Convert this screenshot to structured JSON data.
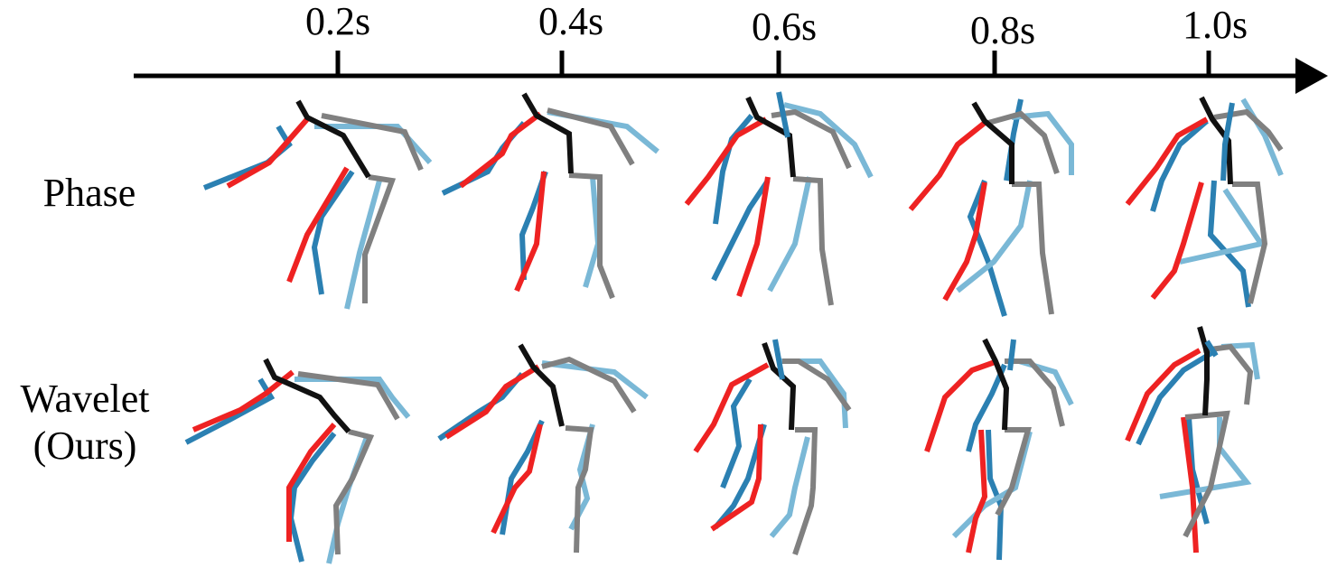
{
  "timeline": {
    "tick_labels": [
      "0.2s",
      "0.4s",
      "0.6s",
      "0.8s",
      "1.0s"
    ]
  },
  "rows": [
    {
      "label_lines": [
        "Phase"
      ]
    },
    {
      "label_lines": [
        "Wavelet",
        "(Ours)"
      ]
    }
  ],
  "colors": {
    "truth_left_limbs": "#2b80b2",
    "truth_right_limbs": "#7ab8d6",
    "pred_left_limbs": "#ee2222",
    "pred_right_limbs": "#808080",
    "pred_torso": "#111111",
    "axis": "#000000"
  },
  "icons": [
    "timeline-arrow-icon",
    "skeleton-pose-icon"
  ]
}
